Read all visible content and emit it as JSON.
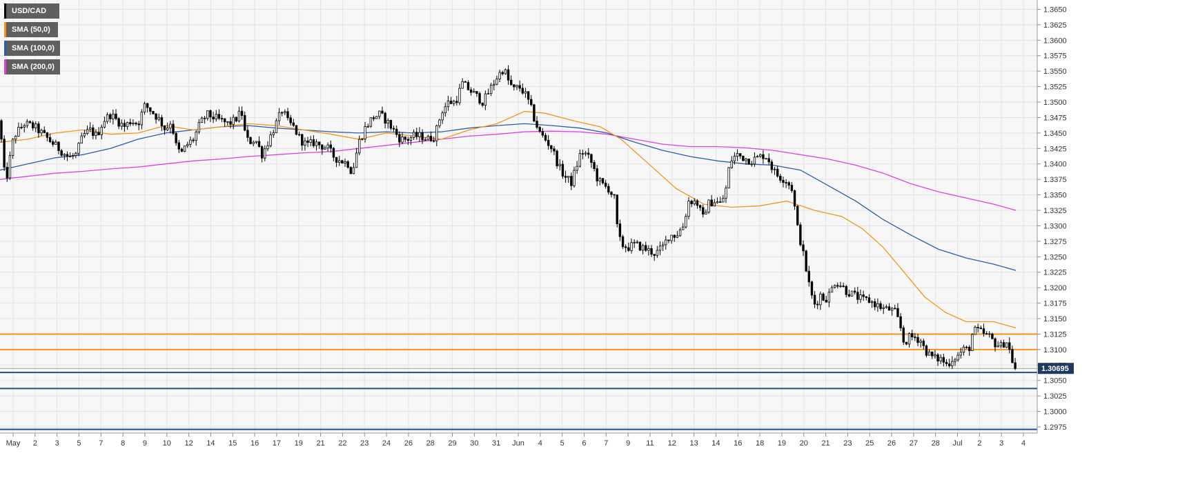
{
  "legend": [
    {
      "label": "USD/CAD",
      "color": "#000000"
    },
    {
      "label": "SMA (50,0)",
      "color": "#f7931a"
    },
    {
      "label": "SMA (100,0)",
      "color": "#2a5caa"
    },
    {
      "label": "SMA (200,0)",
      "color": "#e040e0"
    }
  ],
  "current_price_label": "1.30695",
  "colors": {
    "background": "#f7f7f7",
    "grid": "#e3e3e3",
    "candle_up_fill": "#ffffff",
    "candle_down_fill": "#000000",
    "sma50": "#f7931a",
    "sma100": "#2a5caa",
    "sma200": "#e040e0",
    "resistance": "#f7931a",
    "support": "#1f4e8c",
    "badge": "#1f3a5f"
  },
  "chart_data": {
    "type": "candlestick",
    "pair": "USD/CAD",
    "ylim": [
      1.2965,
      1.3665
    ],
    "y_ticks": [
      "1.2975",
      "1.3000",
      "1.3025",
      "1.3050",
      "1.3075",
      "1.3100",
      "1.3125",
      "1.3150",
      "1.3175",
      "1.3200",
      "1.3225",
      "1.3250",
      "1.3275",
      "1.3300",
      "1.3325",
      "1.3350",
      "1.3375",
      "1.3400",
      "1.3425",
      "1.3450",
      "1.3475",
      "1.3500",
      "1.3525",
      "1.3550",
      "1.3575",
      "1.3600",
      "1.3625",
      "1.3650"
    ],
    "x_labels": [
      "May",
      "2",
      "3",
      "5",
      "7",
      "8",
      "9",
      "10",
      "12",
      "14",
      "15",
      "16",
      "17",
      "19",
      "21",
      "22",
      "23",
      "24",
      "26",
      "28",
      "29",
      "30",
      "31",
      "Jun",
      "4",
      "5",
      "6",
      "7",
      "9",
      "11",
      "12",
      "13",
      "14",
      "16",
      "18",
      "19",
      "20",
      "21",
      "23",
      "25",
      "26",
      "27",
      "28",
      "Jul",
      "2",
      "3",
      "4"
    ],
    "grid": true,
    "legend_position": "top-left",
    "current_price": 1.30695,
    "horizontal_levels": [
      {
        "value": 1.3125,
        "type": "resistance"
      },
      {
        "value": 1.31,
        "type": "resistance"
      },
      {
        "value": 1.3063,
        "type": "support"
      },
      {
        "value": 1.3037,
        "type": "support"
      },
      {
        "value": 1.2971,
        "type": "support"
      }
    ],
    "close_path": [
      [
        0,
        1.347
      ],
      [
        5,
        1.339
      ],
      [
        10,
        1.338
      ],
      [
        20,
        1.3445
      ],
      [
        35,
        1.3465
      ],
      [
        50,
        1.346
      ],
      [
        65,
        1.3445
      ],
      [
        80,
        1.343
      ],
      [
        90,
        1.342
      ],
      [
        100,
        1.341
      ],
      [
        110,
        1.3415
      ],
      [
        120,
        1.3445
      ],
      [
        130,
        1.3455
      ],
      [
        140,
        1.3445
      ],
      [
        150,
        1.347
      ],
      [
        160,
        1.348
      ],
      [
        170,
        1.347
      ],
      [
        180,
        1.346
      ],
      [
        190,
        1.347
      ],
      [
        200,
        1.3465
      ],
      [
        210,
        1.3495
      ],
      [
        220,
        1.3485
      ],
      [
        232,
        1.347
      ],
      [
        240,
        1.3455
      ],
      [
        248,
        1.347
      ],
      [
        255,
        1.343
      ],
      [
        262,
        1.3415
      ],
      [
        270,
        1.343
      ],
      [
        280,
        1.344
      ],
      [
        290,
        1.3465
      ],
      [
        300,
        1.348
      ],
      [
        310,
        1.3475
      ],
      [
        320,
        1.347
      ],
      [
        330,
        1.3465
      ],
      [
        340,
        1.347
      ],
      [
        350,
        1.3485
      ],
      [
        355,
        1.345
      ],
      [
        360,
        1.3435
      ],
      [
        370,
        1.344
      ],
      [
        380,
        1.3415
      ],
      [
        390,
        1.344
      ],
      [
        400,
        1.3465
      ],
      [
        410,
        1.349
      ],
      [
        415,
        1.347
      ],
      [
        425,
        1.346
      ],
      [
        435,
        1.344
      ],
      [
        445,
        1.343
      ],
      [
        455,
        1.3435
      ],
      [
        465,
        1.343
      ],
      [
        475,
        1.3425
      ],
      [
        485,
        1.341
      ],
      [
        495,
        1.3405
      ],
      [
        505,
        1.34
      ],
      [
        510,
        1.3385
      ],
      [
        515,
        1.341
      ],
      [
        520,
        1.3435
      ],
      [
        530,
        1.346
      ],
      [
        540,
        1.3475
      ],
      [
        550,
        1.348
      ],
      [
        560,
        1.347
      ],
      [
        570,
        1.3455
      ],
      [
        580,
        1.344
      ],
      [
        590,
        1.344
      ],
      [
        600,
        1.3445
      ],
      [
        610,
        1.3445
      ],
      [
        620,
        1.344
      ],
      [
        630,
        1.3445
      ],
      [
        640,
        1.3485
      ],
      [
        650,
        1.35
      ],
      [
        660,
        1.35
      ],
      [
        670,
        1.353
      ],
      [
        680,
        1.352
      ],
      [
        690,
        1.351
      ],
      [
        700,
        1.35
      ],
      [
        710,
        1.352
      ],
      [
        720,
        1.354
      ],
      [
        730,
        1.3555
      ],
      [
        738,
        1.353
      ],
      [
        745,
        1.352
      ],
      [
        752,
        1.3525
      ],
      [
        760,
        1.3515
      ],
      [
        768,
        1.3495
      ],
      [
        775,
        1.347
      ],
      [
        782,
        1.345
      ],
      [
        790,
        1.344
      ],
      [
        800,
        1.3425
      ],
      [
        810,
        1.3395
      ],
      [
        818,
        1.338
      ],
      [
        828,
        1.337
      ],
      [
        835,
        1.3395
      ],
      [
        842,
        1.342
      ],
      [
        850,
        1.3415
      ],
      [
        858,
        1.34
      ],
      [
        866,
        1.3375
      ],
      [
        874,
        1.3365
      ],
      [
        882,
        1.336
      ],
      [
        890,
        1.3345
      ],
      [
        895,
        1.329
      ],
      [
        900,
        1.327
      ],
      [
        910,
        1.3265
      ],
      [
        920,
        1.327
      ],
      [
        930,
        1.3265
      ],
      [
        940,
        1.326
      ],
      [
        950,
        1.3255
      ],
      [
        960,
        1.3265
      ],
      [
        970,
        1.3285
      ],
      [
        980,
        1.3285
      ],
      [
        990,
        1.33
      ],
      [
        998,
        1.334
      ],
      [
        1005,
        1.334
      ],
      [
        1012,
        1.3335
      ],
      [
        1018,
        1.331
      ],
      [
        1025,
        1.3335
      ],
      [
        1035,
        1.334
      ],
      [
        1045,
        1.3335
      ],
      [
        1052,
        1.336
      ],
      [
        1058,
        1.3405
      ],
      [
        1068,
        1.3415
      ],
      [
        1078,
        1.341
      ],
      [
        1088,
        1.3405
      ],
      [
        1098,
        1.341
      ],
      [
        1108,
        1.3415
      ],
      [
        1115,
        1.3405
      ],
      [
        1120,
        1.339
      ],
      [
        1128,
        1.338
      ],
      [
        1138,
        1.3375
      ],
      [
        1148,
        1.336
      ],
      [
        1155,
        1.33
      ],
      [
        1162,
        1.3265
      ],
      [
        1168,
        1.323
      ],
      [
        1175,
        1.319
      ],
      [
        1182,
        1.317
      ],
      [
        1188,
        1.319
      ],
      [
        1195,
        1.318
      ],
      [
        1202,
        1.319
      ],
      [
        1210,
        1.321
      ],
      [
        1218,
        1.3205
      ],
      [
        1226,
        1.3195
      ],
      [
        1234,
        1.319
      ],
      [
        1242,
        1.3185
      ],
      [
        1250,
        1.318
      ],
      [
        1258,
        1.318
      ],
      [
        1266,
        1.3175
      ],
      [
        1274,
        1.317
      ],
      [
        1282,
        1.3165
      ],
      [
        1290,
        1.3165
      ],
      [
        1297,
        1.316
      ],
      [
        1304,
        1.314
      ],
      [
        1310,
        1.311
      ],
      [
        1318,
        1.312
      ],
      [
        1326,
        1.312
      ],
      [
        1334,
        1.3115
      ],
      [
        1340,
        1.31
      ],
      [
        1348,
        1.309
      ],
      [
        1356,
        1.3085
      ],
      [
        1364,
        1.3085
      ],
      [
        1372,
        1.3075
      ],
      [
        1380,
        1.3085
      ],
      [
        1388,
        1.309
      ],
      [
        1396,
        1.31
      ],
      [
        1404,
        1.31
      ],
      [
        1410,
        1.313
      ],
      [
        1418,
        1.313
      ],
      [
        1426,
        1.3125
      ],
      [
        1434,
        1.312
      ],
      [
        1442,
        1.311
      ],
      [
        1450,
        1.3105
      ],
      [
        1458,
        1.3115
      ],
      [
        1464,
        1.3095
      ],
      [
        1470,
        1.3068
      ],
      [
        1473,
        1.307
      ]
    ],
    "sma50": [
      [
        0,
        1.3435
      ],
      [
        40,
        1.344
      ],
      [
        80,
        1.345
      ],
      [
        120,
        1.3455
      ],
      [
        160,
        1.3448
      ],
      [
        200,
        1.345
      ],
      [
        240,
        1.3462
      ],
      [
        280,
        1.3455
      ],
      [
        320,
        1.346
      ],
      [
        360,
        1.3465
      ],
      [
        400,
        1.3462
      ],
      [
        440,
        1.3455
      ],
      [
        480,
        1.3448
      ],
      [
        520,
        1.344
      ],
      [
        560,
        1.345
      ],
      [
        600,
        1.3445
      ],
      [
        640,
        1.344
      ],
      [
        680,
        1.3455
      ],
      [
        720,
        1.3465
      ],
      [
        760,
        1.3485
      ],
      [
        790,
        1.3482
      ],
      [
        830,
        1.347
      ],
      [
        870,
        1.346
      ],
      [
        900,
        1.344
      ],
      [
        940,
        1.34
      ],
      [
        980,
        1.336
      ],
      [
        1020,
        1.3335
      ],
      [
        1060,
        1.333
      ],
      [
        1100,
        1.3332
      ],
      [
        1140,
        1.334
      ],
      [
        1180,
        1.3325
      ],
      [
        1220,
        1.3315
      ],
      [
        1250,
        1.3295
      ],
      [
        1280,
        1.3265
      ],
      [
        1310,
        1.3225
      ],
      [
        1340,
        1.3185
      ],
      [
        1370,
        1.316
      ],
      [
        1400,
        1.3145
      ],
      [
        1440,
        1.3145
      ],
      [
        1472,
        1.3135
      ]
    ],
    "sma100": [
      [
        0,
        1.339
      ],
      [
        40,
        1.34
      ],
      [
        80,
        1.341
      ],
      [
        120,
        1.3415
      ],
      [
        160,
        1.3425
      ],
      [
        200,
        1.344
      ],
      [
        240,
        1.345
      ],
      [
        280,
        1.3455
      ],
      [
        320,
        1.346
      ],
      [
        360,
        1.3462
      ],
      [
        400,
        1.3458
      ],
      [
        440,
        1.3455
      ],
      [
        480,
        1.3452
      ],
      [
        520,
        1.345
      ],
      [
        560,
        1.3452
      ],
      [
        600,
        1.345
      ],
      [
        640,
        1.3452
      ],
      [
        680,
        1.3458
      ],
      [
        720,
        1.3462
      ],
      [
        760,
        1.3465
      ],
      [
        800,
        1.3462
      ],
      [
        840,
        1.3458
      ],
      [
        880,
        1.345
      ],
      [
        920,
        1.3435
      ],
      [
        960,
        1.3422
      ],
      [
        1000,
        1.3412
      ],
      [
        1040,
        1.3405
      ],
      [
        1080,
        1.34
      ],
      [
        1120,
        1.3398
      ],
      [
        1160,
        1.339
      ],
      [
        1200,
        1.3365
      ],
      [
        1240,
        1.334
      ],
      [
        1280,
        1.331
      ],
      [
        1320,
        1.3285
      ],
      [
        1360,
        1.3262
      ],
      [
        1400,
        1.3248
      ],
      [
        1440,
        1.3238
      ],
      [
        1472,
        1.3228
      ]
    ],
    "sma200": [
      [
        0,
        1.3375
      ],
      [
        40,
        1.338
      ],
      [
        80,
        1.3385
      ],
      [
        120,
        1.3388
      ],
      [
        160,
        1.3392
      ],
      [
        200,
        1.3395
      ],
      [
        240,
        1.34
      ],
      [
        280,
        1.3405
      ],
      [
        320,
        1.3408
      ],
      [
        360,
        1.3412
      ],
      [
        400,
        1.3415
      ],
      [
        440,
        1.3418
      ],
      [
        480,
        1.342
      ],
      [
        520,
        1.3425
      ],
      [
        560,
        1.343
      ],
      [
        600,
        1.3435
      ],
      [
        640,
        1.344
      ],
      [
        680,
        1.3445
      ],
      [
        720,
        1.3448
      ],
      [
        760,
        1.3452
      ],
      [
        800,
        1.3453
      ],
      [
        840,
        1.3452
      ],
      [
        880,
        1.3448
      ],
      [
        920,
        1.344
      ],
      [
        960,
        1.3432
      ],
      [
        1000,
        1.3428
      ],
      [
        1040,
        1.3428
      ],
      [
        1080,
        1.3426
      ],
      [
        1120,
        1.3422
      ],
      [
        1160,
        1.3415
      ],
      [
        1200,
        1.3408
      ],
      [
        1240,
        1.3398
      ],
      [
        1280,
        1.3385
      ],
      [
        1320,
        1.3368
      ],
      [
        1360,
        1.3355
      ],
      [
        1400,
        1.3345
      ],
      [
        1440,
        1.3335
      ],
      [
        1472,
        1.3325
      ]
    ]
  }
}
